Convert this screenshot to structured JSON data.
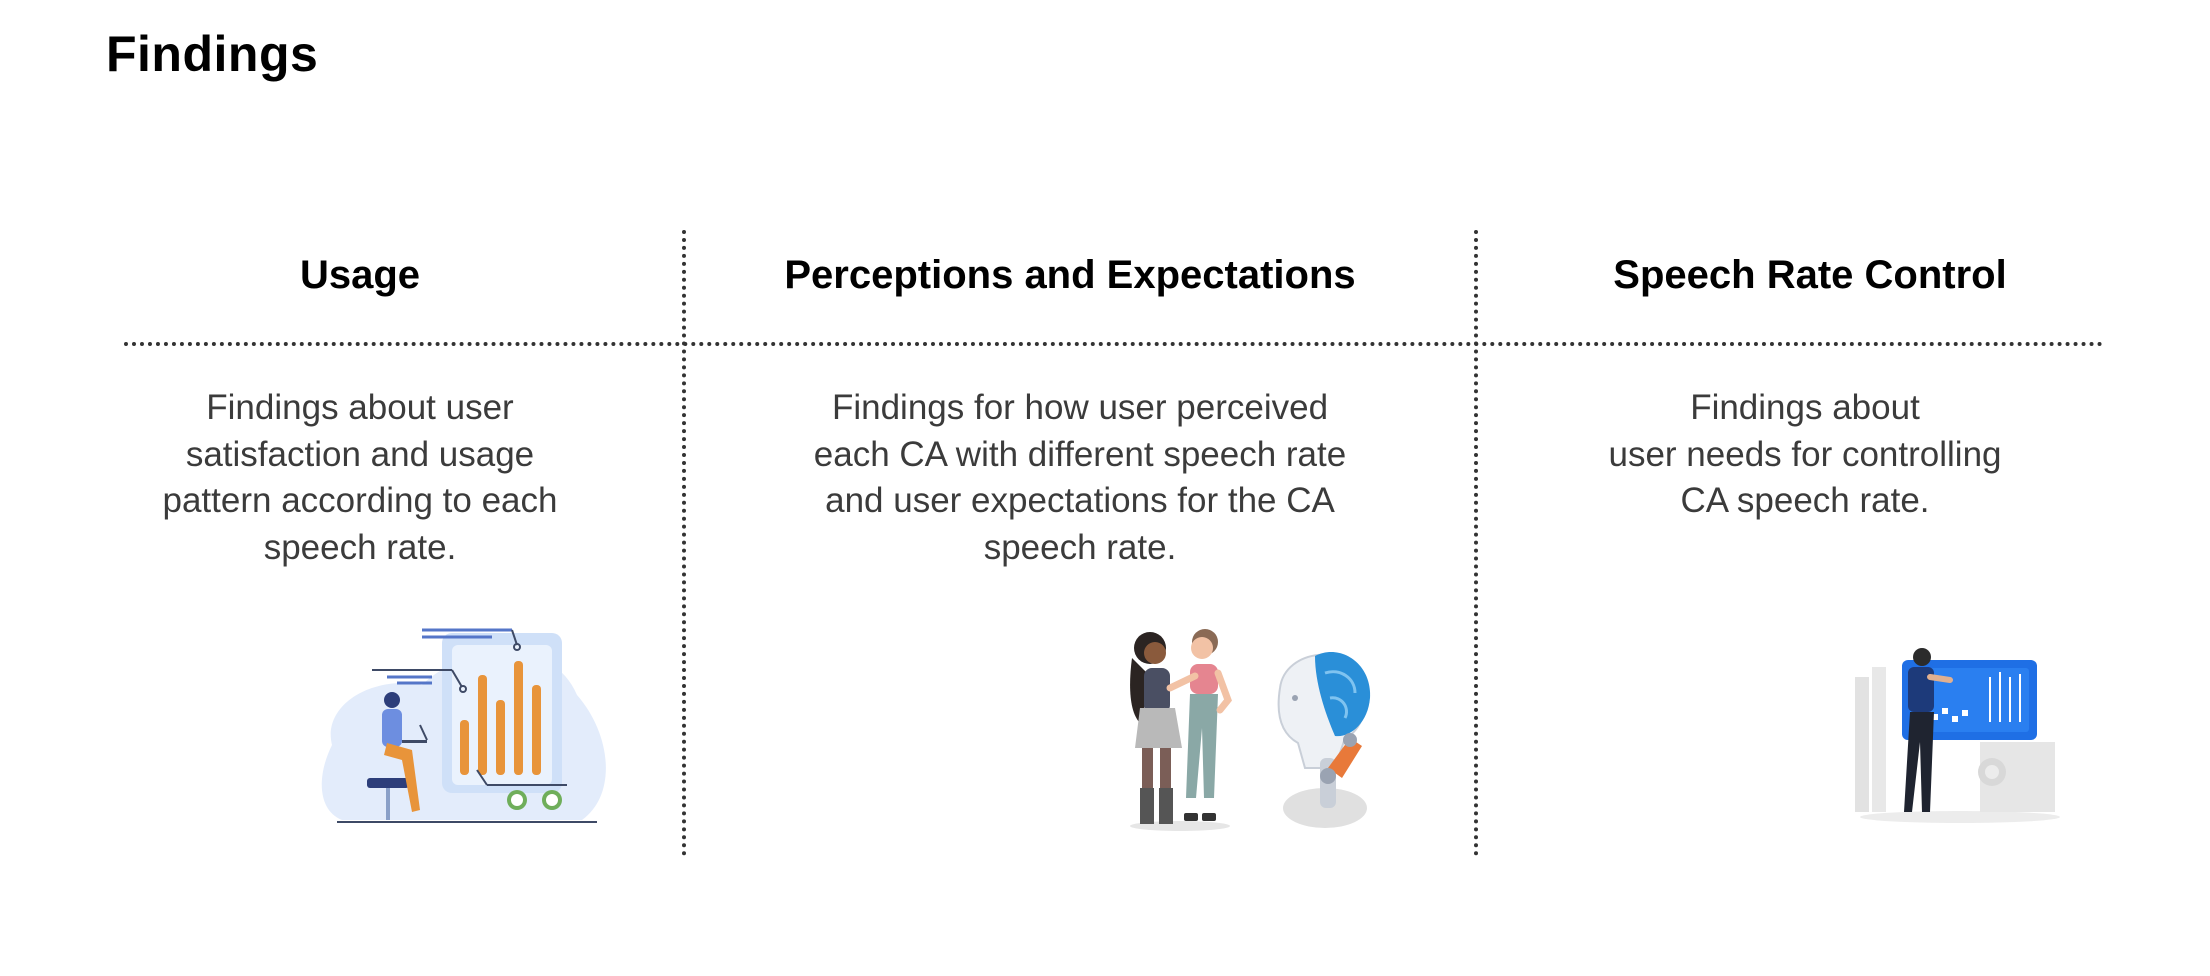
{
  "page": {
    "title": "Findings"
  },
  "columns": [
    {
      "heading": "Usage",
      "description": "Findings about user\nsatisfaction and usage\npattern according to each\nspeech rate.",
      "illustration": "analytics-person-laptop-illustration"
    },
    {
      "heading": "Perceptions and Expectations",
      "description": "Findings for how user perceived\neach CA with different speech rate\nand user expectations for the CA\nspeech rate.",
      "illustration": "people-and-robot-illustration"
    },
    {
      "heading": "Speech Rate Control",
      "description": "Findings about\nuser needs for controlling\nCA speech rate.",
      "illustration": "person-control-panel-illustration"
    }
  ],
  "colors": {
    "title": "#000000",
    "body_text": "#3b3b3b",
    "divider": "#333333",
    "accent_blue": "#1f6fe5",
    "accent_orange": "#e8943a",
    "light_blue": "#e3ecfb"
  }
}
